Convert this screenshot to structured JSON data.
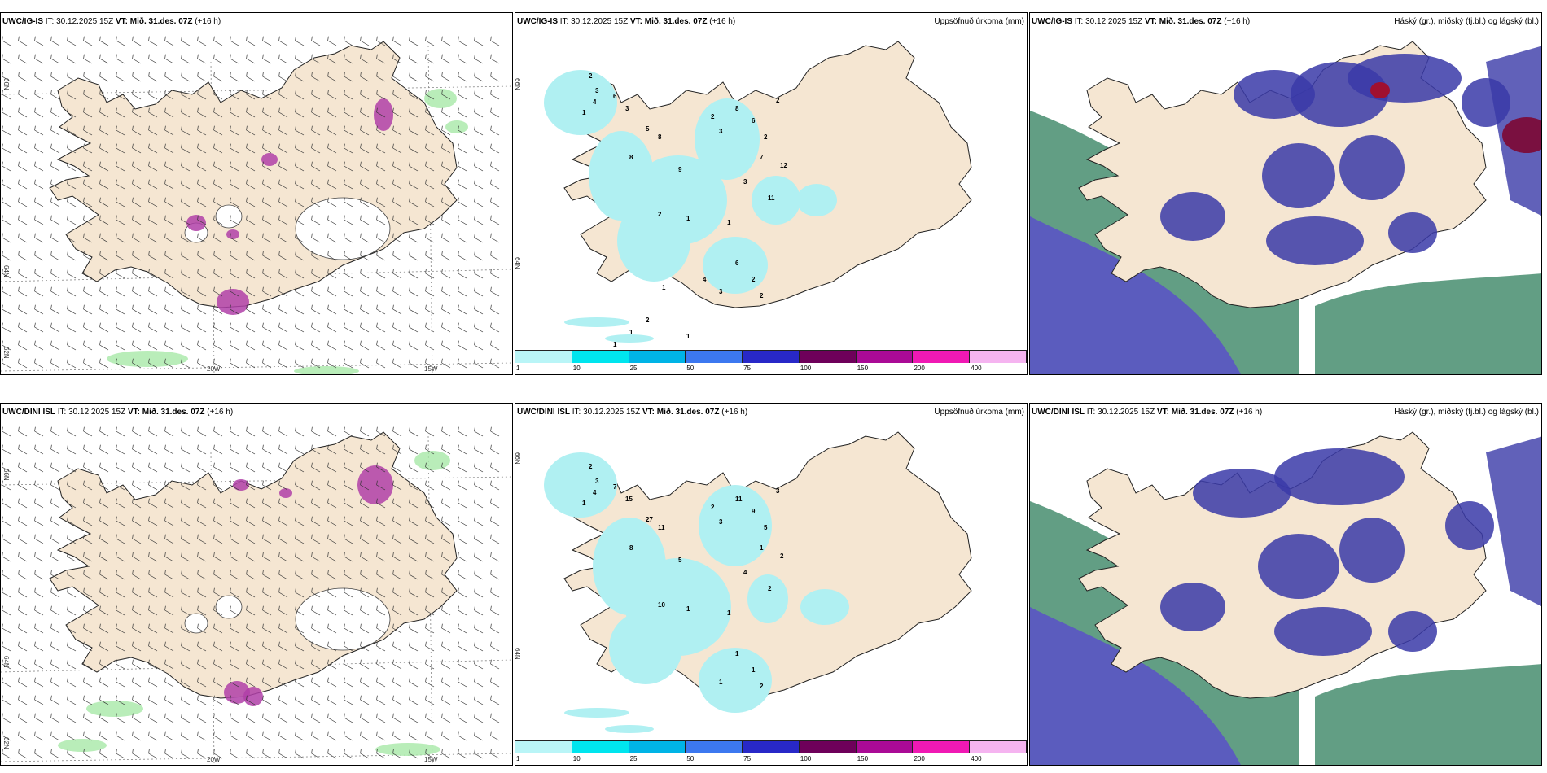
{
  "panels": [
    {
      "id": "p1",
      "type": "wind",
      "model": "UWC/IG-IS",
      "it_label": "IT:",
      "it": "30.12.2025 15Z",
      "vt_label": "VT:",
      "vt": "Mið. 31.des. 07Z",
      "lead": "(+16 h)",
      "title": "",
      "lon_labels": [
        "20W",
        "15W"
      ],
      "lat_labels": [
        "66N",
        "64N",
        "62N"
      ]
    },
    {
      "id": "p2",
      "type": "precip",
      "model": "UWC/IG-IS",
      "it_label": "IT:",
      "it": "30.12.2025 15Z",
      "vt_label": "VT:",
      "vt": "Mið. 31.des. 07Z",
      "lead": "(+16 h)",
      "title": "Uppsöfnuð úrkoma (mm)",
      "lat_labels": [
        "66N",
        "64N"
      ],
      "values": [
        "2",
        "3",
        "4",
        "1",
        "6",
        "3",
        "5",
        "8",
        "8",
        "9",
        "3",
        "2",
        "8",
        "6",
        "2",
        "7",
        "12",
        "2",
        "3",
        "11",
        "2",
        "1",
        "1",
        "6",
        "2",
        "2",
        "3",
        "4",
        "1",
        "2",
        "1",
        "1",
        "2",
        "1"
      ]
    },
    {
      "id": "p3",
      "type": "cloud",
      "model": "UWC/IG-IS",
      "it_label": "IT:",
      "it": "30.12.2025 15Z",
      "vt_label": "VT:",
      "vt": "Mið. 31.des. 07Z",
      "lead": "(+16 h)",
      "title": "Háský (gr.), miðský (fj.bl.) og lágský (bl.)"
    },
    {
      "id": "p4",
      "type": "wind",
      "model": "UWC/DINI ISL",
      "it_label": "IT:",
      "it": "30.12.2025 15Z",
      "vt_label": "VT:",
      "vt": "Mið. 31.des. 07Z",
      "lead": "(+16 h)",
      "title": "",
      "lon_labels": [
        "20W",
        "15W"
      ],
      "lat_labels": [
        "66N",
        "64N",
        "62N"
      ]
    },
    {
      "id": "p5",
      "type": "precip",
      "model": "UWC/DINI ISL",
      "it_label": "IT:",
      "it": "30.12.2025 15Z",
      "vt_label": "VT:",
      "vt": "Mið. 31.des. 07Z",
      "lead": "(+16 h)",
      "title": "Uppsöfnuð úrkoma (mm)",
      "lat_labels": [
        "66N",
        "64N"
      ],
      "values": [
        "2",
        "3",
        "4",
        "1",
        "7",
        "15",
        "27",
        "11",
        "8",
        "5",
        "3",
        "2",
        "11",
        "9",
        "5",
        "1",
        "2",
        "3",
        "4",
        "2",
        "10",
        "1",
        "1",
        "1",
        "1",
        "2",
        "1"
      ]
    },
    {
      "id": "p6",
      "type": "cloud",
      "model": "UWC/DINI ISL",
      "it_label": "IT:",
      "it": "30.12.2025 15Z",
      "vt_label": "VT:",
      "vt": "Mið. 31.des. 07Z",
      "lead": "(+16 h)",
      "title": "Háský (gr.), miðský (fj.bl.) og lágský (bl.)"
    }
  ],
  "colorbar": {
    "labels": [
      "1",
      "10",
      "25",
      "50",
      "75",
      "100",
      "150",
      "200",
      "400"
    ],
    "colors": [
      "#b9f5f7",
      "#00e5ee",
      "#00b4e6",
      "#3c78f0",
      "#2828c8",
      "#6e005a",
      "#aa0a96",
      "#f019b4",
      "#f5b4f0"
    ]
  },
  "colors": {
    "land": "#f5e6d2",
    "land_dark": "#e8d8c0",
    "wind_snow": "#ffffff",
    "precip_light": "#b0f0f2",
    "purple": "#b040a8",
    "green_light": "#a8e8a8",
    "cloud_high": "#2e7d5b",
    "cloud_mid": "#5a50c8",
    "cloud_low": "#3a3aa8",
    "white": "#ffffff"
  }
}
